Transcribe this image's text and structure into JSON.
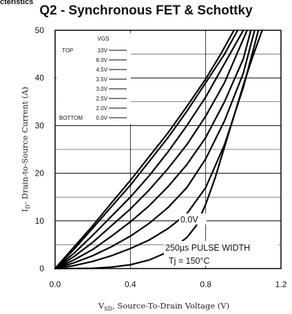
{
  "page": {
    "header_fragment": "cteristics"
  },
  "chart_data": {
    "type": "line",
    "title": "Q2 - Synchronous FET & Schottky",
    "xlabel": {
      "main": "V",
      "sub": "SD",
      "rest": ", Source-To-Drain Voltage (V)"
    },
    "ylabel": {
      "main": "I",
      "sub": "D",
      "rest": "- Drain-to-Source Current (A)"
    },
    "xlim": [
      0,
      1.2
    ],
    "ylim": [
      0,
      50
    ],
    "xticks": [
      "0.0",
      "0.4",
      "0.8",
      "1.2"
    ],
    "yticks": [
      "0",
      "10",
      "20",
      "30",
      "40",
      "50"
    ],
    "grid": true,
    "legend": {
      "header": "VGS",
      "top_label": "TOP",
      "bottom_label": "BOTTOM",
      "entries": [
        "10V",
        "8.0V",
        "4.5V",
        "3.5V",
        "3.0V",
        "2.5V",
        "2.0V",
        "0.0V"
      ]
    },
    "annotations": {
      "curve_label": "0.0V",
      "pulse": "250µs PULSE WIDTH",
      "tj": "Tj = 150°C"
    },
    "series": [
      {
        "name": "10V",
        "x": [
          0,
          0.1,
          0.2,
          0.3,
          0.4,
          0.5,
          0.6,
          0.7,
          0.8,
          0.88,
          0.95
        ],
        "y": [
          0,
          4.5,
          9,
          13.8,
          18.5,
          23.5,
          28.5,
          34,
          39.8,
          45,
          50
        ]
      },
      {
        "name": "8.0V",
        "x": [
          0,
          0.1,
          0.2,
          0.3,
          0.4,
          0.5,
          0.6,
          0.7,
          0.8,
          0.9,
          0.97
        ],
        "y": [
          0,
          4,
          8.5,
          13,
          17.5,
          22.5,
          27.5,
          33,
          39,
          45,
          50
        ]
      },
      {
        "name": "4.5V",
        "x": [
          0,
          0.1,
          0.2,
          0.3,
          0.4,
          0.5,
          0.6,
          0.7,
          0.8,
          0.9,
          1.0
        ],
        "y": [
          0,
          3.2,
          7,
          11,
          15,
          19.5,
          24.5,
          30,
          36,
          43,
          50
        ]
      },
      {
        "name": "3.5V",
        "x": [
          0,
          0.1,
          0.2,
          0.3,
          0.4,
          0.5,
          0.6,
          0.7,
          0.8,
          0.9,
          1.02
        ],
        "y": [
          0,
          2.5,
          5.5,
          9,
          12.5,
          16.5,
          21,
          26,
          32,
          39,
          50
        ]
      },
      {
        "name": "3.0V",
        "x": [
          0,
          0.1,
          0.2,
          0.3,
          0.4,
          0.5,
          0.6,
          0.7,
          0.8,
          0.9,
          1.0,
          1.04
        ],
        "y": [
          0,
          1.8,
          4,
          6.8,
          9.8,
          13.2,
          17.2,
          21.8,
          27.5,
          35,
          44,
          50
        ]
      },
      {
        "name": "2.5V",
        "x": [
          0,
          0.1,
          0.2,
          0.3,
          0.4,
          0.5,
          0.6,
          0.7,
          0.8,
          0.9,
          1.0,
          1.06
        ],
        "y": [
          0,
          1.2,
          2.7,
          4.6,
          6.8,
          9.5,
          12.8,
          17,
          23,
          31,
          41,
          50
        ]
      },
      {
        "name": "2.0V",
        "x": [
          0,
          0.1,
          0.2,
          0.3,
          0.4,
          0.5,
          0.6,
          0.7,
          0.8,
          0.9,
          1.0,
          1.08
        ],
        "y": [
          0,
          0.6,
          1.5,
          2.7,
          4.2,
          6,
          8.4,
          11.5,
          17,
          26,
          38,
          50
        ]
      },
      {
        "name": "0.0V",
        "x": [
          0,
          0.2,
          0.3,
          0.4,
          0.5,
          0.6,
          0.7,
          0.75,
          0.8,
          0.85,
          0.9,
          0.95,
          1.0,
          1.05,
          1.1
        ],
        "y": [
          0,
          0.05,
          0.3,
          0.8,
          1.8,
          3.5,
          6.5,
          9,
          13.5,
          19,
          25.5,
          32,
          38.5,
          44.5,
          50
        ]
      }
    ]
  }
}
